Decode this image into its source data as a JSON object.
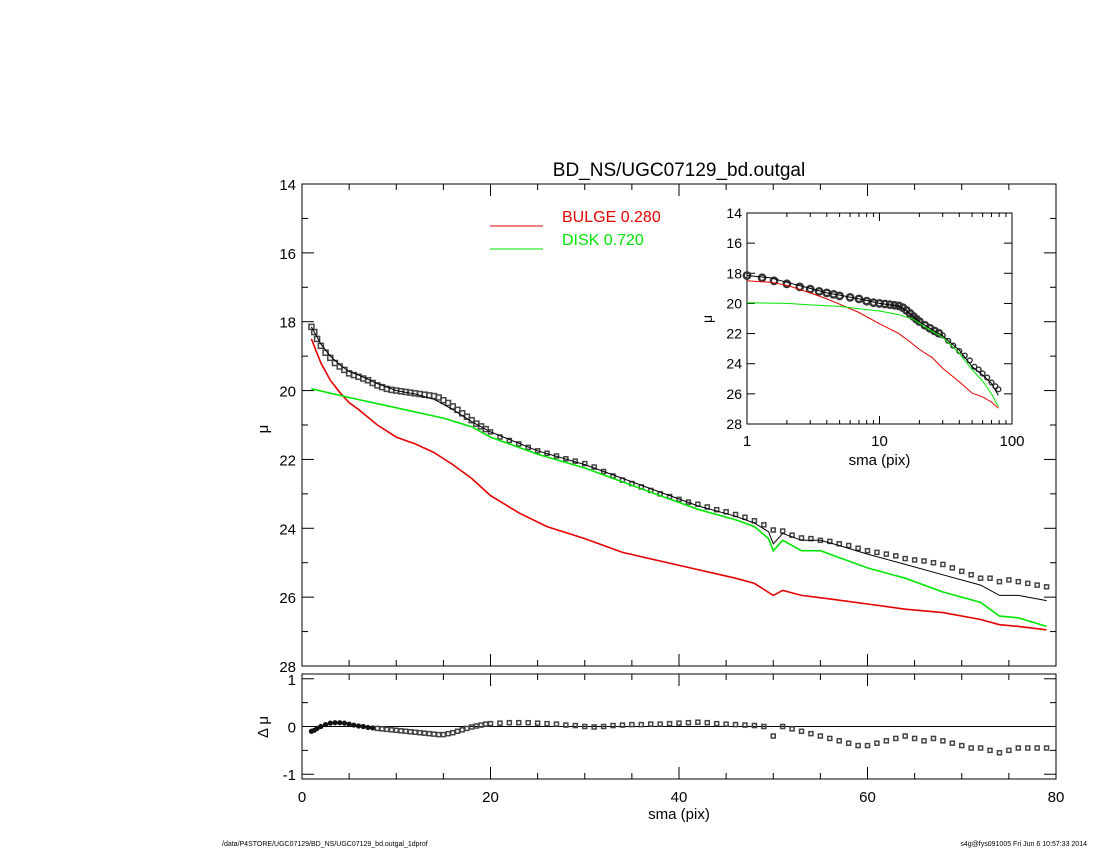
{
  "title": "BD_NS/UGC07129_bd.outgal",
  "footer": {
    "left": "/data/P4STORE/UGC07129/BD_NS/UGC07129_bd.outgal_1dprof",
    "right": "s4g@fys091005  Fri Jun  6 10:57:33 2014"
  },
  "colors": {
    "bulge": "#e60000",
    "disk": "#00e600",
    "model": "#000000",
    "data": "#444444"
  },
  "chart_data": [
    {
      "type": "line",
      "title": "BD_NS/UGC07129_bd.outgal",
      "xlabel": "",
      "ylabel": "μ",
      "xlim": [
        0,
        80
      ],
      "ylim": [
        28,
        14
      ],
      "x_ticks": [
        0,
        20,
        40,
        60,
        80
      ],
      "y_ticks": [
        14,
        16,
        18,
        20,
        22,
        24,
        26,
        28
      ],
      "legend": [
        {
          "label": "BULGE",
          "value": "0.280",
          "color": "#e60000"
        },
        {
          "label": "DISK",
          "value": "0.720",
          "color": "#00e600"
        }
      ],
      "legend_position": "top-center",
      "series": [
        {
          "name": "BULGE",
          "x": [
            1,
            2,
            3,
            4,
            5,
            6,
            8,
            10,
            12,
            14,
            16,
            18,
            20,
            23,
            26,
            30,
            34,
            38,
            42,
            46,
            48,
            50,
            51,
            53,
            56,
            60,
            64,
            68,
            72,
            74,
            76,
            79
          ],
          "y": [
            18.5,
            19.2,
            19.7,
            20.05,
            20.35,
            20.55,
            21.0,
            21.35,
            21.55,
            21.8,
            22.15,
            22.55,
            23.05,
            23.55,
            23.95,
            24.3,
            24.7,
            24.95,
            25.2,
            25.45,
            25.6,
            25.95,
            25.8,
            25.95,
            26.05,
            26.2,
            26.35,
            26.45,
            26.65,
            26.8,
            26.85,
            26.95
          ]
        },
        {
          "name": "DISK",
          "x": [
            1,
            5,
            10,
            15,
            18,
            20,
            25,
            30,
            33,
            38,
            42,
            46,
            48,
            49.5,
            50,
            51,
            53,
            55,
            57,
            60,
            64,
            68,
            72,
            74,
            76,
            79
          ],
          "y": [
            19.95,
            20.2,
            20.5,
            20.8,
            21.05,
            21.35,
            21.85,
            22.25,
            22.55,
            23.05,
            23.45,
            23.75,
            23.95,
            24.3,
            24.65,
            24.35,
            24.65,
            24.65,
            24.85,
            25.15,
            25.45,
            25.85,
            26.15,
            26.55,
            26.6,
            26.85
          ]
        },
        {
          "name": "",
          "x": [
            1,
            2,
            3,
            4,
            5,
            6,
            8,
            10,
            12,
            14,
            16,
            18,
            20,
            25,
            30,
            33,
            38,
            42,
            46,
            48,
            49.5,
            50,
            51,
            53,
            55,
            57,
            60,
            64,
            68,
            72,
            74,
            76,
            79
          ],
          "y": [
            18.15,
            18.65,
            19.0,
            19.25,
            19.45,
            19.55,
            19.8,
            20.0,
            20.1,
            20.25,
            20.55,
            20.9,
            21.2,
            21.75,
            22.15,
            22.45,
            22.95,
            23.35,
            23.65,
            23.85,
            24.1,
            24.45,
            24.15,
            24.35,
            24.35,
            24.5,
            24.75,
            25.05,
            25.35,
            25.65,
            25.95,
            25.95,
            26.1
          ]
        }
      ],
      "data_points": {
        "x": [
          1,
          1.3,
          1.6,
          2,
          2.5,
          3,
          3.5,
          4,
          4.5,
          5,
          5.5,
          6,
          6.5,
          7,
          7.5,
          8,
          8.5,
          9,
          9.5,
          10,
          10.5,
          11,
          11.5,
          12,
          12.5,
          13,
          13.5,
          14,
          14.5,
          15,
          15.5,
          16,
          16.5,
          17,
          17.5,
          18,
          18.5,
          19,
          19.5,
          20,
          21,
          22,
          23,
          24,
          25,
          26,
          27,
          28,
          29,
          30,
          31,
          32,
          33,
          34,
          35,
          36,
          37,
          38,
          39,
          40,
          41,
          42,
          43,
          44,
          45,
          46,
          47,
          48,
          49,
          50,
          51,
          52,
          53,
          54,
          55,
          56,
          57,
          58,
          59,
          60,
          61,
          62,
          63,
          64,
          65,
          66,
          67,
          68,
          69,
          70,
          71,
          72,
          73,
          74,
          75,
          76,
          77,
          78,
          79
        ],
        "y": [
          18.15,
          18.3,
          18.5,
          18.7,
          18.9,
          19.05,
          19.2,
          19.3,
          19.4,
          19.5,
          19.55,
          19.6,
          19.65,
          19.7,
          19.78,
          19.85,
          19.9,
          19.95,
          19.98,
          20.0,
          20.02,
          20.04,
          20.06,
          20.08,
          20.1,
          20.12,
          20.14,
          20.16,
          20.2,
          20.28,
          20.36,
          20.46,
          20.56,
          20.66,
          20.76,
          20.86,
          20.96,
          21.04,
          21.12,
          21.2,
          21.35,
          21.45,
          21.55,
          21.65,
          21.75,
          21.82,
          21.9,
          21.98,
          22.05,
          22.12,
          22.22,
          22.35,
          22.48,
          22.6,
          22.7,
          22.8,
          22.9,
          23.0,
          23.08,
          23.16,
          23.24,
          23.3,
          23.38,
          23.46,
          23.52,
          23.6,
          23.68,
          23.78,
          23.9,
          24.05,
          24.08,
          24.2,
          24.28,
          24.3,
          24.35,
          24.38,
          24.45,
          24.5,
          24.58,
          24.65,
          24.7,
          24.75,
          24.8,
          24.88,
          24.92,
          24.95,
          25.0,
          25.05,
          25.15,
          25.25,
          25.35,
          25.45,
          25.45,
          25.55,
          25.5,
          25.55,
          25.6,
          25.65,
          25.7
        ]
      }
    },
    {
      "type": "scatter",
      "title": "",
      "xlabel": "sma (pix)",
      "ylabel": "Δ μ",
      "xlim": [
        0,
        80
      ],
      "ylim": [
        -1.1,
        1.1
      ],
      "x_ticks": [
        0,
        20,
        40,
        60,
        80
      ],
      "y_ticks": [
        1,
        0,
        -1
      ],
      "zero_line": true,
      "series": [
        {
          "name": "",
          "x": [
            1,
            1.3,
            1.6,
            2,
            2.5,
            3,
            3.5,
            4,
            4.5,
            5,
            5.5,
            6,
            6.5,
            7,
            7.5,
            8,
            8.5,
            9,
            9.5,
            10,
            10.5,
            11,
            11.5,
            12,
            12.5,
            13,
            13.5,
            14,
            14.5,
            15,
            15.5,
            16,
            16.5,
            17,
            17.5,
            18,
            18.5,
            19,
            19.5,
            20,
            21,
            22,
            23,
            24,
            25,
            26,
            27,
            28,
            29,
            30,
            31,
            32,
            33,
            34,
            35,
            36,
            37,
            38,
            39,
            40,
            41,
            42,
            43,
            44,
            45,
            46,
            47,
            48,
            49,
            50,
            51,
            52,
            53,
            54,
            55,
            56,
            57,
            58,
            59,
            60,
            61,
            62,
            63,
            64,
            65,
            66,
            67,
            68,
            69,
            70,
            71,
            72,
            73,
            74,
            75,
            76,
            77,
            78,
            79
          ],
          "y": [
            -0.1,
            -0.08,
            -0.04,
            0.0,
            0.04,
            0.07,
            0.08,
            0.08,
            0.07,
            0.05,
            0.03,
            0.01,
            0.0,
            -0.02,
            -0.03,
            -0.04,
            -0.05,
            -0.06,
            -0.07,
            -0.08,
            -0.09,
            -0.1,
            -0.11,
            -0.12,
            -0.13,
            -0.14,
            -0.15,
            -0.16,
            -0.17,
            -0.17,
            -0.15,
            -0.13,
            -0.1,
            -0.07,
            -0.04,
            -0.01,
            0.01,
            0.03,
            0.05,
            0.06,
            0.07,
            0.08,
            0.08,
            0.08,
            0.07,
            0.06,
            0.05,
            0.03,
            0.02,
            0.0,
            -0.01,
            0.0,
            0.02,
            0.03,
            0.04,
            0.04,
            0.05,
            0.05,
            0.06,
            0.07,
            0.08,
            0.09,
            0.08,
            0.06,
            0.05,
            0.04,
            0.03,
            0.02,
            0.0,
            -0.2,
            0.0,
            -0.05,
            -0.1,
            -0.15,
            -0.2,
            -0.25,
            -0.3,
            -0.35,
            -0.4,
            -0.4,
            -0.35,
            -0.3,
            -0.25,
            -0.2,
            -0.25,
            -0.3,
            -0.25,
            -0.3,
            -0.35,
            -0.4,
            -0.45,
            -0.45,
            -0.5,
            -0.55,
            -0.5,
            -0.45,
            -0.45,
            -0.45,
            -0.45
          ]
        }
      ]
    },
    {
      "type": "line",
      "title": "",
      "xlabel": "sma (pix)",
      "ylabel": "μ",
      "x_scale": "log",
      "xlim": [
        1,
        100
      ],
      "ylim": [
        28,
        14
      ],
      "x_ticks": [
        1,
        10,
        100
      ],
      "y_ticks": [
        14,
        16,
        18,
        20,
        22,
        24,
        26,
        28
      ],
      "series": [
        {
          "name": "BULGE",
          "x": [
            1,
            1.5,
            2,
            3,
            4,
            5,
            7,
            10,
            14,
            17,
            20,
            25,
            30,
            40,
            50,
            60,
            70,
            79
          ],
          "y": [
            18.5,
            18.6,
            18.8,
            19.3,
            19.7,
            20.05,
            20.6,
            21.35,
            22.0,
            22.55,
            23.05,
            23.6,
            24.3,
            25.2,
            25.95,
            26.2,
            26.55,
            26.95
          ]
        },
        {
          "name": "DISK",
          "x": [
            1,
            2,
            3,
            5,
            7,
            10,
            14,
            18,
            25,
            30,
            40,
            50,
            60,
            70,
            79
          ],
          "y": [
            19.95,
            20.0,
            20.1,
            20.2,
            20.35,
            20.5,
            20.75,
            21.05,
            21.85,
            22.25,
            23.3,
            24.4,
            25.15,
            26.0,
            26.85
          ]
        },
        {
          "name": "",
          "x": [
            1,
            1.5,
            2,
            3,
            4,
            5,
            7,
            10,
            12,
            14,
            16,
            18,
            20,
            25,
            30,
            40,
            50,
            60,
            70,
            79
          ],
          "y": [
            18.15,
            18.3,
            18.6,
            19.0,
            19.3,
            19.45,
            19.7,
            20.0,
            20.1,
            20.2,
            20.5,
            20.9,
            21.2,
            21.75,
            22.15,
            23.1,
            24.2,
            24.75,
            25.3,
            26.1
          ]
        }
      ],
      "data_points": {
        "x": [
          1,
          1.3,
          1.6,
          2,
          2.5,
          3,
          3.5,
          4,
          4.5,
          5,
          6,
          7,
          8,
          9,
          10,
          11,
          12,
          13,
          14,
          15,
          16,
          17,
          18,
          19,
          20,
          22,
          24,
          26,
          28,
          30,
          33,
          36,
          40,
          44,
          48,
          52,
          56,
          60,
          65,
          70,
          75,
          79
        ],
        "y": [
          18.15,
          18.3,
          18.5,
          18.7,
          18.9,
          19.05,
          19.2,
          19.3,
          19.4,
          19.5,
          19.6,
          19.7,
          19.85,
          19.95,
          20.0,
          20.04,
          20.08,
          20.12,
          20.16,
          20.28,
          20.46,
          20.66,
          20.86,
          21.04,
          21.2,
          21.45,
          21.65,
          21.82,
          21.98,
          22.12,
          22.48,
          22.8,
          23.16,
          23.46,
          23.78,
          24.2,
          24.38,
          24.65,
          24.92,
          25.25,
          25.5,
          25.7
        ]
      }
    }
  ]
}
